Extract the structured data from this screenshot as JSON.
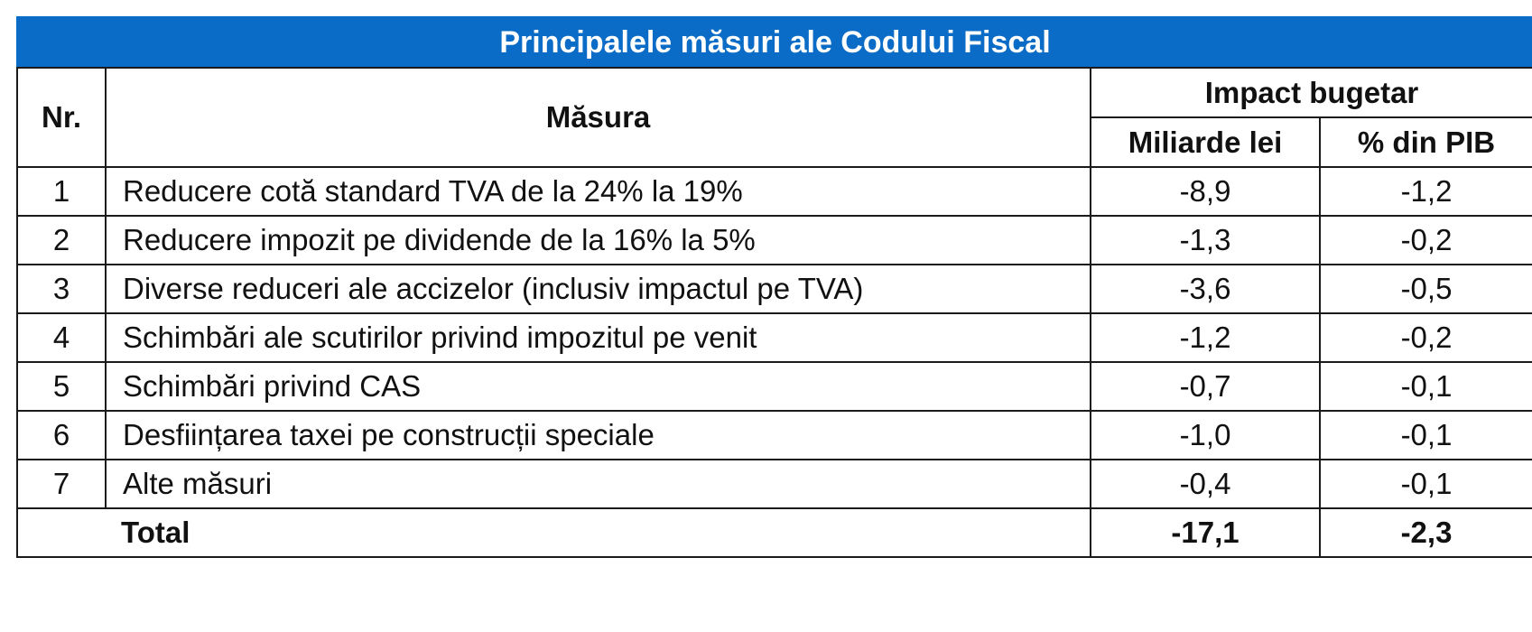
{
  "table": {
    "title": "Principalele măsuri ale Codului Fiscal",
    "headers": {
      "nr": "Nr.",
      "measure": "Măsura",
      "impact_group": "Impact bugetar",
      "billions": "Miliarde lei",
      "gdp_pct": "% din PIB"
    },
    "rows": [
      {
        "nr": "1",
        "measure": "Reducere cotă standard TVA de la 24% la 19%",
        "billions": "-8,9",
        "gdp_pct": "-1,2"
      },
      {
        "nr": "2",
        "measure": "Reducere impozit pe dividende de la 16% la 5%",
        "billions": "-1,3",
        "gdp_pct": "-0,2"
      },
      {
        "nr": "3",
        "measure": "Diverse reduceri ale accizelor (inclusiv impactul pe TVA)",
        "billions": "-3,6",
        "gdp_pct": "-0,5"
      },
      {
        "nr": "4",
        "measure": "Schimbări ale scutirilor privind impozitul pe venit",
        "billions": "-1,2",
        "gdp_pct": "-0,2"
      },
      {
        "nr": "5",
        "measure": "Schimbări privind CAS",
        "billions": "-0,7",
        "gdp_pct": "-0,1"
      },
      {
        "nr": "6",
        "measure": "Desființarea taxei pe construcții speciale",
        "billions": "-1,0",
        "gdp_pct": "-0,1"
      },
      {
        "nr": "7",
        "measure": "Alte măsuri",
        "billions": "-0,4",
        "gdp_pct": "-0,1"
      }
    ],
    "total": {
      "label": "Total",
      "billions": "-17,1",
      "gdp_pct": "-2,3"
    },
    "colors": {
      "title_bg": "#0a6cc6",
      "title_text": "#ffffff",
      "border": "#1a1a1a"
    }
  }
}
